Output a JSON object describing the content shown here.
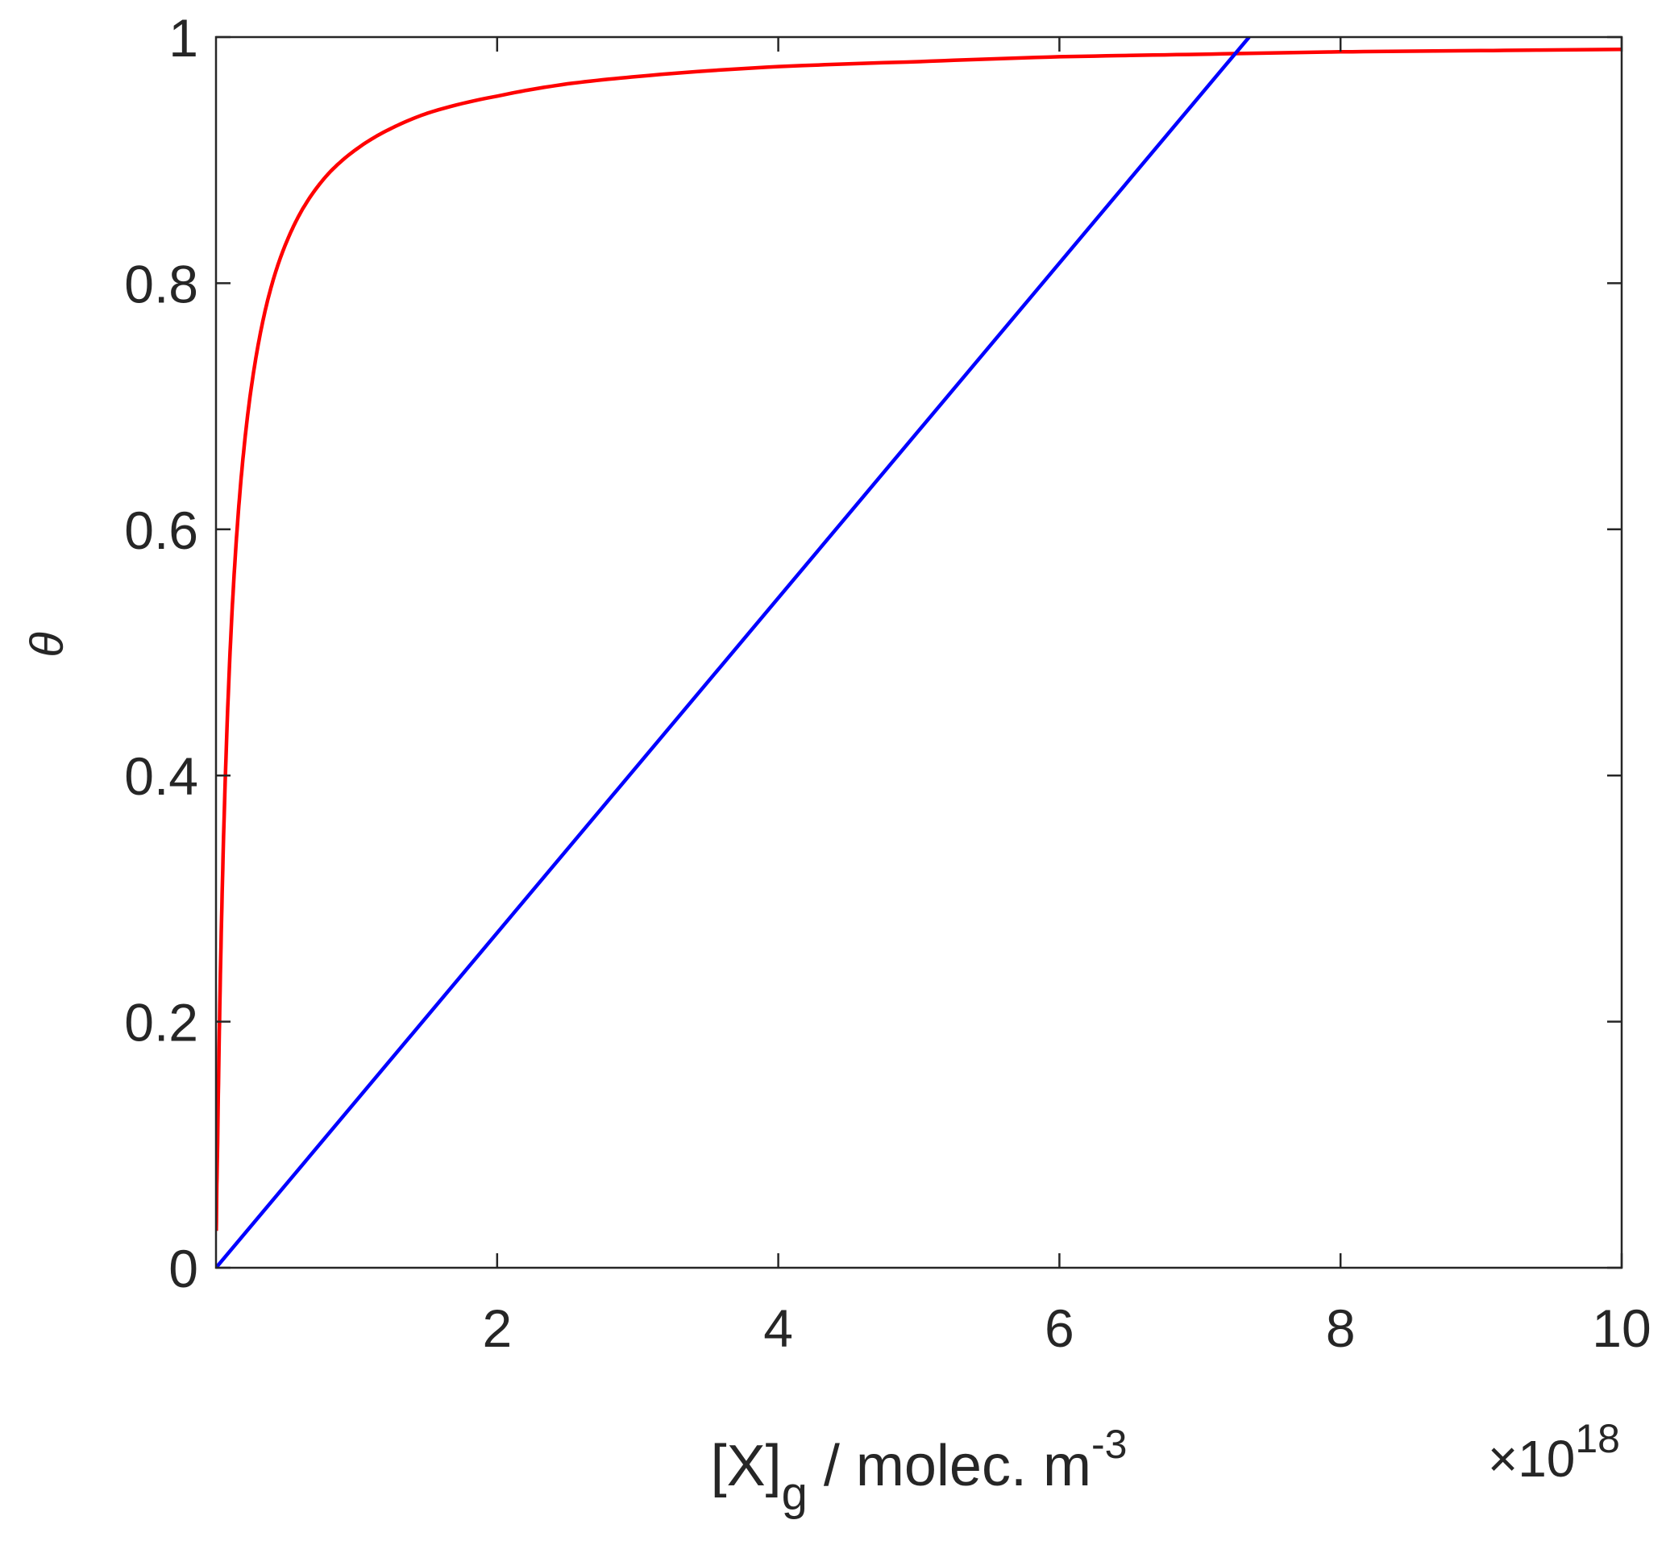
{
  "chart_data": {
    "type": "line",
    "title": "",
    "xlabel": {
      "main": "[X]",
      "subscript": "g",
      "unit": " / molec. m",
      "superscript": "-3"
    },
    "ylabel": "θ",
    "x_multiplier": {
      "prefix": "×10",
      "exponent": "18"
    },
    "xlim": [
      0,
      10
    ],
    "ylim": [
      0,
      1
    ],
    "xticks": [
      {
        "value": 2,
        "label": "2"
      },
      {
        "value": 4,
        "label": "4"
      },
      {
        "value": 6,
        "label": "6"
      },
      {
        "value": 8,
        "label": "8"
      },
      {
        "value": 10,
        "label": "10"
      }
    ],
    "yticks": [
      {
        "value": 0,
        "label": "0"
      },
      {
        "value": 0.2,
        "label": "0.2"
      },
      {
        "value": 0.4,
        "label": "0.4"
      },
      {
        "value": 0.6,
        "label": "0.6"
      },
      {
        "value": 0.8,
        "label": "0.8"
      },
      {
        "value": 1,
        "label": "1"
      }
    ],
    "grid": false,
    "series": [
      {
        "color": "#ff0000",
        "x": [
          0.002,
          0.01,
          0.025,
          0.05,
          0.1,
          0.15,
          0.2,
          0.3,
          0.4,
          0.5,
          0.6,
          0.8,
          1.0,
          1.25,
          1.5,
          2.0,
          2.5,
          3.0,
          4.0,
          5.0,
          6.0,
          7.0,
          8.0,
          9.0,
          10.0
        ],
        "y": [
          0.03,
          0.091,
          0.2,
          0.333,
          0.5,
          0.6,
          0.667,
          0.75,
          0.8,
          0.833,
          0.857,
          0.889,
          0.909,
          0.926,
          0.938,
          0.952,
          0.962,
          0.968,
          0.976,
          0.98,
          0.984,
          0.986,
          0.988,
          0.989,
          0.99
        ]
      },
      {
        "color": "#0000ff",
        "x": [
          0,
          7.35
        ],
        "y": [
          0,
          1.0
        ]
      }
    ]
  }
}
